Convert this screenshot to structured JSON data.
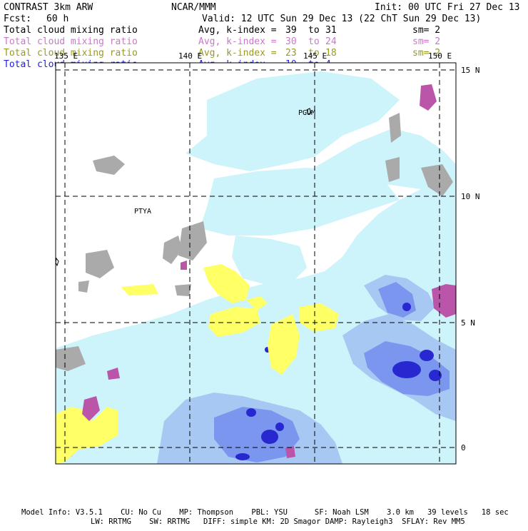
{
  "header": {
    "model": "CONTRAST  3km ARW",
    "center": "NCAR/MMM",
    "init": "Init: 00 UTC Fri 27 Dec 13",
    "fcst_label": "Fcst:",
    "fcst_value": "60 h",
    "valid": "Valid: 12 UTC Sun 29 Dec 13 (22 ChT Sun 29 Dec 13)"
  },
  "layers": [
    {
      "field": "Total cloud mixing ratio",
      "kindex": "Avg, k-index =",
      "from": "39",
      "to_word": "to",
      "to": "31",
      "sm": "sm= 2",
      "color": "#000000"
    },
    {
      "field": "Total cloud mixing ratio",
      "kindex": "Avg, k-index =",
      "from": "30",
      "to_word": "to",
      "to": "24",
      "sm": "sm= 2",
      "color": "#cc77cc"
    },
    {
      "field": "Total cloud mixing ratio",
      "kindex": "Avg, k-index =",
      "from": "23",
      "to_word": "to",
      "to": "18",
      "sm": "sm= 2",
      "color": "#999922"
    },
    {
      "field": "Total cloud mixing ratio",
      "kindex": "Avg, k-index =",
      "from": "10",
      "to_word": "to",
      "to": "4",
      "sm": "",
      "color": "#2222dd"
    }
  ],
  "map": {
    "lon_labels": [
      "135 E",
      "140 E",
      "145 E",
      "150 E"
    ],
    "lat_labels": [
      "15 N",
      "10 N",
      "5 N",
      "0"
    ],
    "stations": [
      "PGUM",
      "PTYA"
    ]
  },
  "footer": {
    "line1": "Model Info: V3.5.1    CU: No Cu    MP: Thompson    PBL: YSU      SF: Noah LSM    3.0 km   39 levels   18 sec",
    "line2": "LW: RRTMG    SW: RRTMG   DIFF: simple KM: 2D Smagor DAMP: Rayleigh3  SFLAY: Rev MM5"
  },
  "colors": {
    "light_cyan": "#ccf4fa",
    "pale_blue": "#a8c8f4",
    "mid_blue": "#7a96ee",
    "deep_blue": "#2828d0",
    "yellow": "#ffff66",
    "gray": "#aaaaaa",
    "purple": "#bb55aa"
  }
}
